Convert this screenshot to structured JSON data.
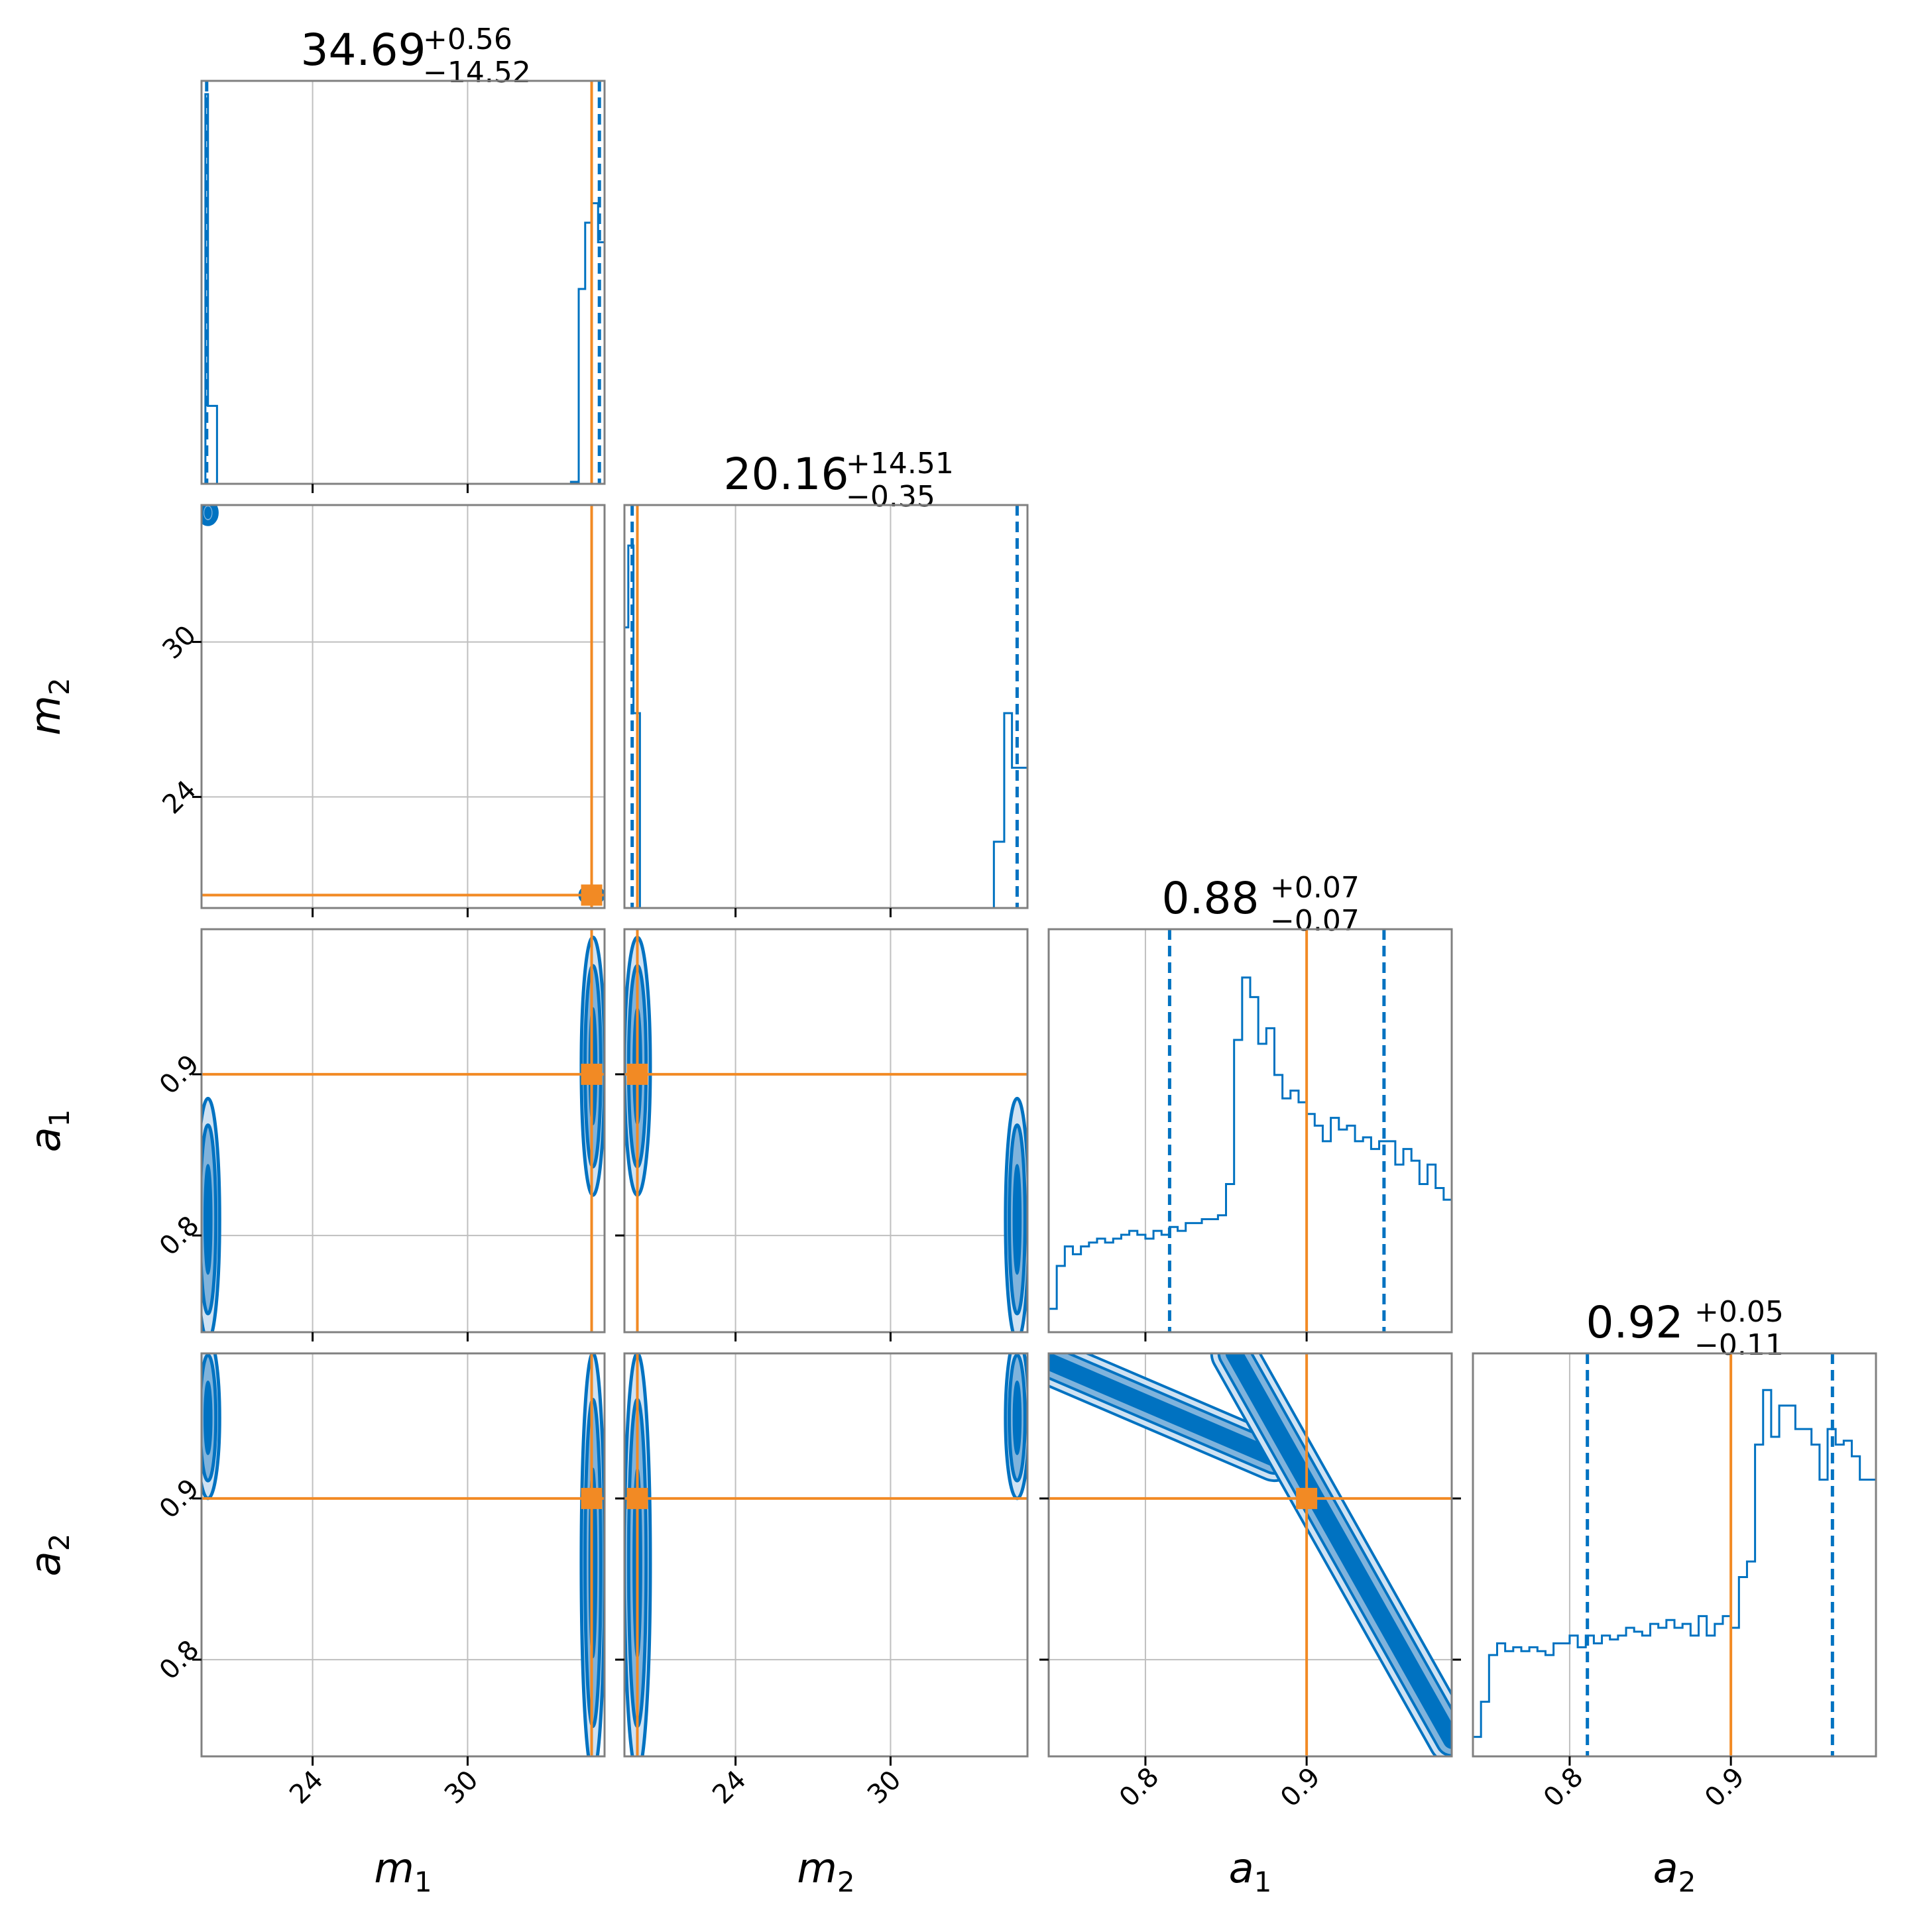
{
  "chart_data": {
    "type": "corner",
    "parameters": [
      {
        "name": "m",
        "sub": "1",
        "range": [
          19.7,
          35.3
        ],
        "ticks": [
          24,
          30
        ],
        "tick_labels": [
          "24",
          "30"
        ],
        "truth": 34.8
      },
      {
        "name": "m",
        "sub": "2",
        "range": [
          19.7,
          35.3
        ],
        "ticks": [
          24,
          30
        ],
        "tick_labels": [
          "24",
          "30"
        ],
        "truth": 20.2
      },
      {
        "name": "a",
        "sub": "1",
        "range": [
          0.74,
          0.99
        ],
        "ticks": [
          0.8,
          0.9
        ],
        "tick_labels": [
          "0.8",
          "0.9"
        ],
        "truth": 0.9
      },
      {
        "name": "a",
        "sub": "2",
        "range": [
          0.74,
          0.99
        ],
        "ticks": [
          0.8,
          0.9
        ],
        "tick_labels": [
          "0.8",
          "0.9"
        ],
        "truth": 0.9
      }
    ],
    "titles": [
      {
        "median": "34.69",
        "plus": "+0.56",
        "minus": "−14.52"
      },
      {
        "median": "20.16",
        "plus": "+14.51",
        "minus": "−0.35"
      },
      {
        "median": "0.88",
        "plus": "+0.07",
        "minus": "−0.07"
      },
      {
        "median": "0.92",
        "plus": "+0.05",
        "minus": "−0.11"
      }
    ],
    "quantile_lines": [
      [
        19.9,
        35.1
      ],
      [
        20.0,
        34.9
      ],
      [
        0.815,
        0.948
      ],
      [
        0.811,
        0.963
      ]
    ],
    "histograms": [
      {
        "bins": [
          [
            19.7,
            19.85,
            0.0
          ],
          [
            19.85,
            19.95,
            1.0
          ],
          [
            19.95,
            20.3,
            0.2
          ],
          [
            20.3,
            34.0,
            0.0
          ],
          [
            34.0,
            34.3,
            0.005
          ],
          [
            34.3,
            34.55,
            0.5
          ],
          [
            34.55,
            34.8,
            0.67
          ],
          [
            34.8,
            35.05,
            0.72
          ],
          [
            35.05,
            35.3,
            0.62
          ]
        ]
      },
      {
        "bins": [
          [
            19.7,
            19.85,
            0.72
          ],
          [
            19.85,
            20.05,
            0.93
          ],
          [
            20.05,
            20.3,
            0.5
          ],
          [
            20.3,
            34.0,
            0.0
          ],
          [
            34.0,
            34.4,
            0.17
          ],
          [
            34.4,
            34.7,
            0.5
          ],
          [
            34.7,
            35.3,
            0.36
          ]
        ]
      },
      {
        "edges": [
          0.74,
          0.745,
          0.75,
          0.755,
          0.76,
          0.765,
          0.77,
          0.775,
          0.78,
          0.785,
          0.79,
          0.795,
          0.8,
          0.805,
          0.81,
          0.815,
          0.82,
          0.825,
          0.83,
          0.835,
          0.84,
          0.845,
          0.85,
          0.855,
          0.86,
          0.865,
          0.87,
          0.875,
          0.88,
          0.885,
          0.89,
          0.895,
          0.9,
          0.905,
          0.91,
          0.915,
          0.92,
          0.925,
          0.93,
          0.935,
          0.94,
          0.945,
          0.95,
          0.955,
          0.96,
          0.965,
          0.97,
          0.975,
          0.98,
          0.985,
          0.99
        ],
        "counts": [
          0.06,
          0.17,
          0.22,
          0.2,
          0.22,
          0.23,
          0.24,
          0.23,
          0.24,
          0.25,
          0.26,
          0.25,
          0.24,
          0.26,
          0.25,
          0.27,
          0.26,
          0.28,
          0.28,
          0.29,
          0.29,
          0.3,
          0.38,
          0.75,
          0.91,
          0.86,
          0.74,
          0.78,
          0.66,
          0.6,
          0.62,
          0.59,
          0.56,
          0.53,
          0.49,
          0.55,
          0.52,
          0.53,
          0.49,
          0.5,
          0.47,
          0.49,
          0.49,
          0.43,
          0.47,
          0.44,
          0.38,
          0.43,
          0.37,
          0.34
        ]
      },
      {
        "edges": [
          0.74,
          0.745,
          0.75,
          0.755,
          0.76,
          0.765,
          0.77,
          0.775,
          0.78,
          0.785,
          0.79,
          0.795,
          0.8,
          0.805,
          0.81,
          0.815,
          0.82,
          0.825,
          0.83,
          0.835,
          0.84,
          0.845,
          0.85,
          0.855,
          0.86,
          0.865,
          0.87,
          0.875,
          0.88,
          0.885,
          0.89,
          0.895,
          0.9,
          0.905,
          0.91,
          0.915,
          0.92,
          0.925,
          0.93,
          0.935,
          0.94,
          0.945,
          0.95,
          0.955,
          0.96,
          0.965,
          0.97,
          0.975,
          0.98,
          0.985,
          0.99
        ],
        "counts": [
          0.05,
          0.14,
          0.26,
          0.29,
          0.27,
          0.28,
          0.27,
          0.28,
          0.27,
          0.26,
          0.29,
          0.29,
          0.31,
          0.28,
          0.31,
          0.29,
          0.31,
          0.3,
          0.31,
          0.33,
          0.32,
          0.31,
          0.34,
          0.33,
          0.35,
          0.33,
          0.34,
          0.31,
          0.36,
          0.31,
          0.34,
          0.36,
          0.33,
          0.46,
          0.5,
          0.8,
          0.94,
          0.82,
          0.9,
          0.9,
          0.84,
          0.84,
          0.8,
          0.71,
          0.84,
          0.8,
          0.81,
          0.77,
          0.71,
          0.71
        ]
      }
    ],
    "contours_2d": [
      {
        "row": 1,
        "col": 0,
        "blobs": [
          {
            "cx": 19.95,
            "cy": 35.0,
            "rx": 0.35,
            "ry": 0.45
          },
          {
            "cx": 34.8,
            "cy": 20.2,
            "rx": 0.45,
            "ry": 0.35
          }
        ]
      },
      {
        "row": 2,
        "col": 0,
        "blobs": [
          {
            "cx": 34.85,
            "cy": 0.905,
            "rx": 0.45,
            "ry": 0.08
          },
          {
            "cx": 19.95,
            "cy": 0.81,
            "rx": 0.45,
            "ry": 0.075
          }
        ]
      },
      {
        "row": 2,
        "col": 1,
        "blobs": [
          {
            "cx": 20.2,
            "cy": 0.905,
            "rx": 0.5,
            "ry": 0.08
          },
          {
            "cx": 34.9,
            "cy": 0.81,
            "rx": 0.45,
            "ry": 0.075
          }
        ]
      },
      {
        "row": 3,
        "col": 0,
        "blobs": [
          {
            "cx": 19.95,
            "cy": 0.95,
            "rx": 0.45,
            "ry": 0.05
          },
          {
            "cx": 34.85,
            "cy": 0.86,
            "rx": 0.45,
            "ry": 0.13
          }
        ]
      },
      {
        "row": 3,
        "col": 1,
        "blobs": [
          {
            "cx": 20.2,
            "cy": 0.86,
            "rx": 0.5,
            "ry": 0.13
          },
          {
            "cx": 34.9,
            "cy": 0.95,
            "rx": 0.45,
            "ry": 0.05
          }
        ]
      },
      {
        "row": 3,
        "col": 2,
        "bands": [
          {
            "x1": 0.74,
            "y1": 0.985,
            "x2": 0.88,
            "y2": 0.925
          },
          {
            "x1": 0.855,
            "y1": 0.99,
            "x2": 0.99,
            "y2": 0.75
          }
        ]
      }
    ],
    "colors": {
      "posterior": "#0072c1",
      "fill_outer": "#cfe2f3",
      "fill_mid": "#7fb3dc",
      "truth": "#f28a24",
      "grid": "#bfbfbf",
      "frame": "#808080"
    }
  }
}
